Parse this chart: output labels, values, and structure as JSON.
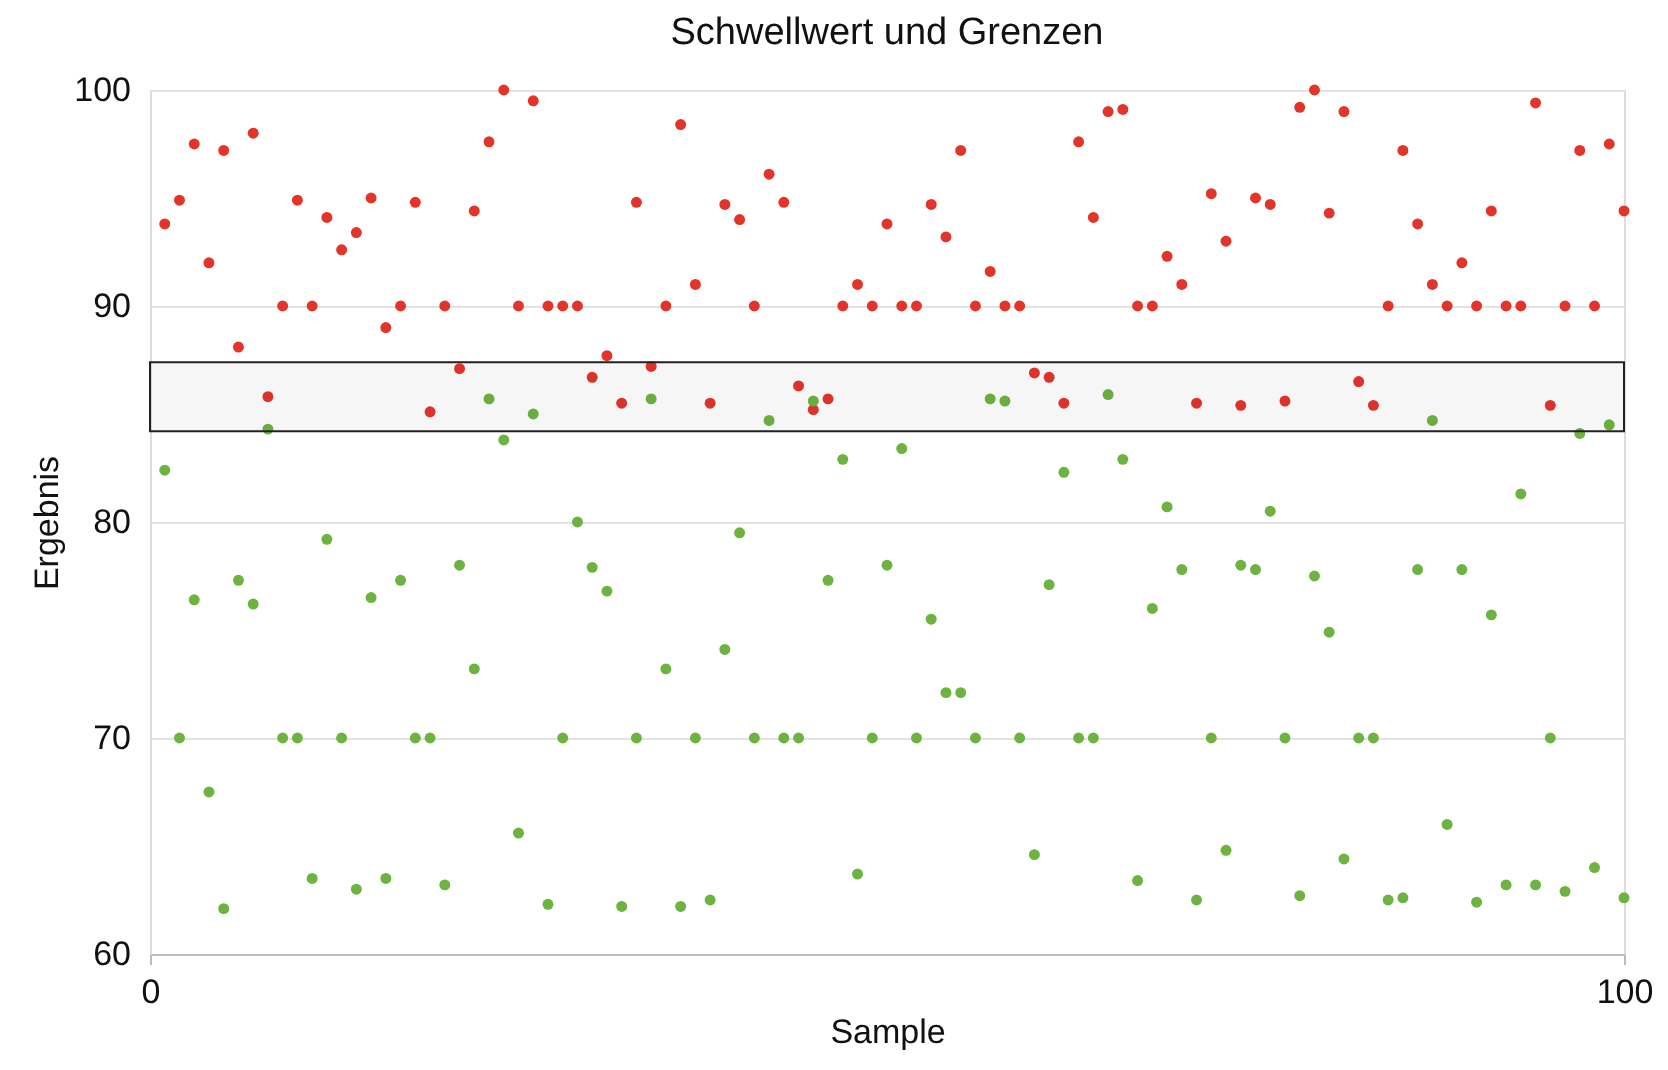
{
  "chart_data": {
    "type": "scatter",
    "title": "Schwellwert und Grenzen",
    "xlabel": "Sample",
    "ylabel": "Ergebnis",
    "x": [
      1,
      2,
      3,
      4,
      5,
      6,
      7,
      8,
      9,
      10,
      11,
      12,
      13,
      14,
      15,
      16,
      17,
      18,
      19,
      20,
      21,
      22,
      23,
      24,
      25,
      26,
      27,
      28,
      29,
      30,
      31,
      32,
      33,
      34,
      35,
      36,
      37,
      38,
      39,
      40,
      41,
      42,
      43,
      44,
      45,
      46,
      47,
      48,
      49,
      50,
      51,
      52,
      53,
      54,
      55,
      56,
      57,
      58,
      59,
      60,
      61,
      62,
      63,
      64,
      65,
      66,
      67,
      68,
      69,
      70,
      71,
      72,
      73,
      74,
      75,
      76,
      77,
      78,
      79,
      80,
      81,
      82,
      83,
      84,
      85,
      86,
      87,
      88,
      89,
      90,
      91,
      92,
      93,
      94,
      95,
      96,
      97,
      98,
      99,
      100
    ],
    "series": [
      {
        "color": "#e3342a",
        "values": [
          93.8,
          94.9,
          97.5,
          92.0,
          97.2,
          88.1,
          98.0,
          85.8,
          90,
          94.9,
          90,
          94.1,
          92.6,
          93.4,
          95.0,
          89.0,
          90,
          94.8,
          85.1,
          90,
          87.1,
          94.4,
          97.6,
          100,
          90,
          99.5,
          90,
          90,
          90,
          86.7,
          87.7,
          85.5,
          94.8,
          87.2,
          90,
          98.4,
          91.0,
          85.5,
          94.7,
          94.0,
          90,
          96.1,
          94.8,
          86.3,
          85.2,
          85.7,
          90,
          91.0,
          90,
          93.8,
          90,
          90,
          94.7,
          93.2,
          97.2,
          90,
          91.6,
          90,
          90,
          86.9,
          86.7,
          85.5,
          97.6,
          94.1,
          99.0,
          99.1,
          90,
          90,
          92.3,
          91.0,
          85.5,
          95.2,
          93.0,
          85.4,
          95.0,
          94.7,
          85.6,
          99.2,
          100,
          94.3,
          99.0,
          86.5,
          85.4,
          90,
          97.2,
          93.8,
          91.0,
          90,
          92.0,
          90,
          94.4,
          90,
          90,
          99.4,
          85.4,
          90,
          97.2,
          90,
          97.5,
          94.4
        ]
      },
      {
        "color": "#6cb33f",
        "values": [
          82.4,
          70,
          76.4,
          67.5,
          62.1,
          77.3,
          76.2,
          84.3,
          70,
          70,
          63.5,
          79.2,
          70,
          63.0,
          76.5,
          63.5,
          77.3,
          70,
          70,
          63.2,
          78.0,
          73.2,
          85.7,
          83.8,
          65.6,
          85.0,
          62.3,
          70,
          80.0,
          77.9,
          76.8,
          62.2,
          70,
          85.7,
          73.2,
          62.2,
          70,
          62.5,
          74.1,
          79.5,
          70,
          84.7,
          70,
          70,
          85.6,
          77.3,
          82.9,
          63.7,
          70,
          78.0,
          83.4,
          70,
          75.5,
          72.1,
          72.1,
          70,
          85.7,
          85.6,
          70,
          64.6,
          77.1,
          82.3,
          70,
          70,
          85.9,
          82.9,
          63.4,
          76.0,
          80.7,
          77.8,
          62.5,
          70,
          64.8,
          78.0,
          77.8,
          80.5,
          70,
          62.7,
          77.5,
          74.9,
          64.4,
          70,
          70,
          62.5,
          62.6,
          77.8,
          84.7,
          66.0,
          77.8,
          62.4,
          75.7,
          63.2,
          81.3,
          63.2,
          70,
          62.9,
          84.1,
          64.0,
          84.5,
          62.6
        ]
      }
    ],
    "bands": [
      {
        "axis": "y",
        "from": 84.2,
        "to": 87.4,
        "color": "#222222"
      }
    ],
    "xlim": [
      0,
      100
    ],
    "xticks": [
      0,
      100
    ],
    "ylim": [
      60,
      100
    ],
    "yticks": [
      60,
      70,
      80,
      90,
      100
    ],
    "grid": "y",
    "marker": "circle"
  }
}
